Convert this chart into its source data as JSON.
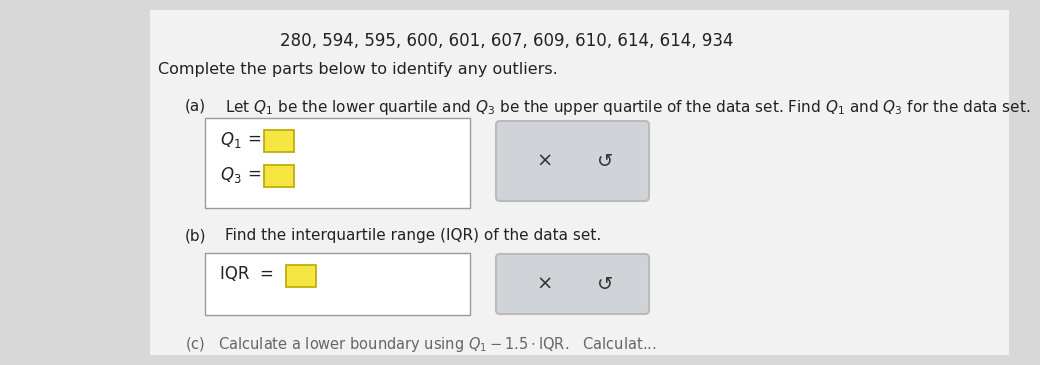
{
  "background_color": "#d8d8d8",
  "panel_color": "#f0f0f0",
  "title_line": "280, 594, 595, 600, 601, 607, 609, 610, 614, 614, 934",
  "intro_text": "Complete the parts below to identify any outliers.",
  "part_a_text": "Let $\\mathit{Q}_1$ be the lower quartile and $\\mathit{Q}_3$ be the upper quartile of the data set. Find $\\mathit{Q}_1$ and $\\mathit{Q}_3$ for the data set.",
  "part_b_text": "Find the interquartile range (IQR) of the data set.",
  "part_c_text": "(c)   Calculate a lower boundary using Q₁ − 1.5·IQR.   Calculat...",
  "box_color": "#ffffff",
  "box_border": "#999999",
  "input_box_color": "#f5e642",
  "input_box_border": "#b8a800",
  "button_bg": "#d0d4d8",
  "button_border": "#aaaaaa",
  "x_symbol": "×",
  "undo_symbol": "↺",
  "text_color": "#222222",
  "dark_text": "#333333",
  "font_size_title": 12,
  "font_size_body": 11,
  "font_size_label": 11
}
